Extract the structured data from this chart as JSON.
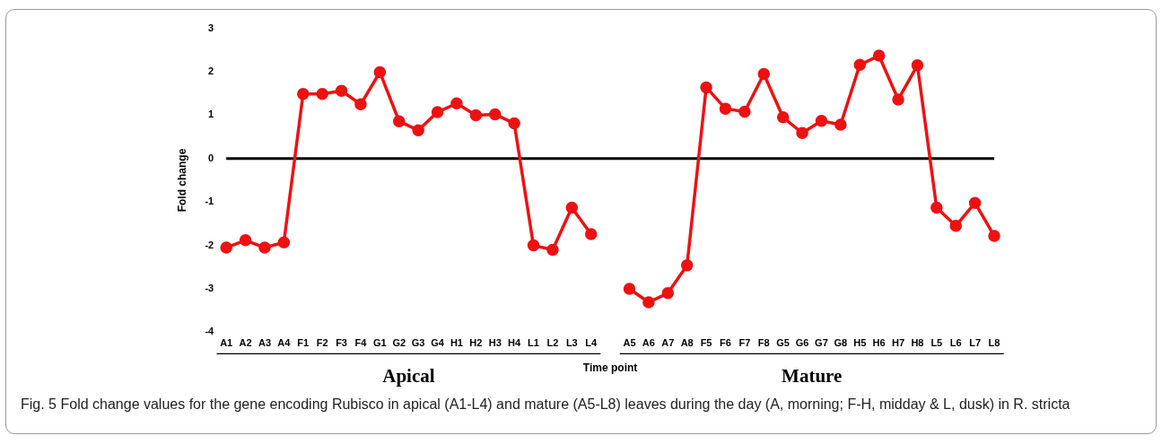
{
  "chart_data": {
    "type": "line",
    "xlabel": "Time point",
    "ylabel": "Fold change",
    "categories": [
      "A1",
      "A2",
      "A3",
      "A4",
      "F1",
      "F2",
      "F3",
      "F4",
      "G1",
      "G2",
      "G3",
      "G4",
      "H1",
      "H2",
      "H3",
      "H4",
      "L1",
      "L2",
      "L3",
      "L4",
      null,
      "A5",
      "A6",
      "A7",
      "A8",
      "F5",
      "F6",
      "F7",
      "F8",
      "G5",
      "G6",
      "G7",
      "G8",
      "H5",
      "H6",
      "H7",
      "H8",
      "L5",
      "L6",
      "L7",
      "L8"
    ],
    "series": [
      {
        "color": "#ee1111",
        "values": [
          -2.05,
          -1.88,
          -2.05,
          -1.93,
          1.49,
          1.49,
          1.56,
          1.25,
          1.99,
          0.86,
          0.65,
          1.07,
          1.27,
          1.0,
          1.02,
          0.81,
          -2.0,
          -2.1,
          -1.13,
          -1.74,
          null,
          -3.0,
          -3.31,
          -3.1,
          -2.46,
          1.64,
          1.15,
          1.08,
          1.95,
          0.95,
          0.59,
          0.87,
          0.78,
          2.16,
          2.37,
          1.36,
          2.15,
          -1.13,
          -1.55,
          -1.02,
          -1.78
        ]
      }
    ],
    "ylim": [
      -4,
      3
    ],
    "yticks": [
      -4,
      -3,
      -2,
      -1,
      0,
      1,
      2,
      3
    ],
    "ref_lines": [
      {
        "axis": "y",
        "value": 0,
        "color": "#000000"
      }
    ],
    "annotations": [
      "Apical",
      "Mature",
      "Fig. 5 Fold change values for the gene encoding Rubisco in apical (A1-L4) and mature (A5-L8) leaves during the day (A, morning; F-H, midday & L, dusk) in R. stricta"
    ],
    "grid": false,
    "legend": false,
    "marker": "circle",
    "line_style": "solid"
  }
}
